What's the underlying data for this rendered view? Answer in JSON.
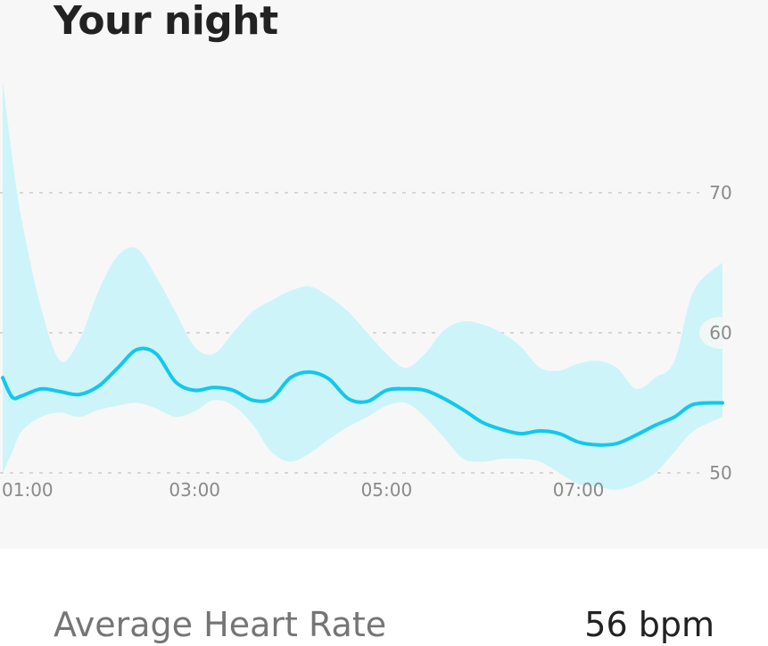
{
  "header": {
    "title": "Your night"
  },
  "colors": {
    "line": "#12c8ea",
    "band": "#cdf4f9",
    "grid": "#cccccc",
    "panel": "#f7f7f7"
  },
  "stat": {
    "label": "Average Heart Rate",
    "value": "56 bpm"
  },
  "chart_data": {
    "type": "line",
    "x_unit": "time",
    "x_ticks": [
      "01:00",
      "03:00",
      "05:00",
      "07:00"
    ],
    "x_tick_values": [
      1,
      3,
      5,
      7
    ],
    "x_range": [
      1.0,
      8.5
    ],
    "ylim": [
      46,
      84
    ],
    "y_ticks": [
      50,
      60,
      70
    ],
    "grid": "horizontal dashed at y ticks",
    "series": [
      {
        "values": [
          [
            1.0,
            56.8
          ],
          [
            1.1,
            55.4
          ],
          [
            1.2,
            55.5
          ],
          [
            1.4,
            56.0
          ],
          [
            1.6,
            55.8
          ],
          [
            1.8,
            55.6
          ],
          [
            2.0,
            56.2
          ],
          [
            2.2,
            57.5
          ],
          [
            2.4,
            58.8
          ],
          [
            2.6,
            58.5
          ],
          [
            2.8,
            56.5
          ],
          [
            3.0,
            55.9
          ],
          [
            3.2,
            56.1
          ],
          [
            3.4,
            55.9
          ],
          [
            3.6,
            55.2
          ],
          [
            3.8,
            55.3
          ],
          [
            4.0,
            56.8
          ],
          [
            4.2,
            57.2
          ],
          [
            4.4,
            56.7
          ],
          [
            4.6,
            55.3
          ],
          [
            4.8,
            55.1
          ],
          [
            5.0,
            55.9
          ],
          [
            5.2,
            56.0
          ],
          [
            5.4,
            55.9
          ],
          [
            5.6,
            55.3
          ],
          [
            5.8,
            54.5
          ],
          [
            6.0,
            53.6
          ],
          [
            6.2,
            53.1
          ],
          [
            6.4,
            52.8
          ],
          [
            6.6,
            53.0
          ],
          [
            6.8,
            52.8
          ],
          [
            7.0,
            52.2
          ],
          [
            7.2,
            52.0
          ],
          [
            7.4,
            52.1
          ],
          [
            7.6,
            52.7
          ],
          [
            7.8,
            53.4
          ],
          [
            8.0,
            54.0
          ],
          [
            8.2,
            54.9
          ],
          [
            8.5,
            55.0
          ]
        ]
      }
    ],
    "range_band": {
      "upper": [
        [
          1.0,
          78.0
        ],
        [
          1.1,
          72.5
        ],
        [
          1.2,
          68.0
        ],
        [
          1.4,
          61.8
        ],
        [
          1.6,
          58.0
        ],
        [
          1.8,
          59.5
        ],
        [
          2.0,
          63.0
        ],
        [
          2.2,
          65.5
        ],
        [
          2.4,
          66.0
        ],
        [
          2.6,
          64.0
        ],
        [
          2.8,
          61.5
        ],
        [
          3.0,
          59.0
        ],
        [
          3.2,
          58.5
        ],
        [
          3.4,
          60.0
        ],
        [
          3.6,
          61.5
        ],
        [
          3.8,
          62.3
        ],
        [
          4.0,
          63.0
        ],
        [
          4.2,
          63.3
        ],
        [
          4.4,
          62.6
        ],
        [
          4.6,
          61.5
        ],
        [
          4.8,
          60.0
        ],
        [
          5.0,
          58.5
        ],
        [
          5.2,
          57.5
        ],
        [
          5.4,
          58.5
        ],
        [
          5.6,
          60.2
        ],
        [
          5.8,
          60.8
        ],
        [
          6.0,
          60.6
        ],
        [
          6.2,
          60.0
        ],
        [
          6.4,
          59.0
        ],
        [
          6.6,
          57.5
        ],
        [
          6.8,
          57.3
        ],
        [
          7.0,
          57.8
        ],
        [
          7.2,
          58.0
        ],
        [
          7.4,
          57.5
        ],
        [
          7.6,
          56.0
        ],
        [
          7.8,
          56.8
        ],
        [
          8.0,
          58.0
        ],
        [
          8.2,
          63.0
        ],
        [
          8.5,
          65.0
        ]
      ],
      "lower": [
        [
          1.0,
          50.0
        ],
        [
          1.1,
          51.5
        ],
        [
          1.2,
          53.0
        ],
        [
          1.4,
          54.0
        ],
        [
          1.6,
          54.3
        ],
        [
          1.8,
          54.0
        ],
        [
          2.0,
          54.5
        ],
        [
          2.2,
          54.8
        ],
        [
          2.4,
          55.0
        ],
        [
          2.6,
          54.6
        ],
        [
          2.8,
          54.0
        ],
        [
          3.0,
          54.4
        ],
        [
          3.2,
          55.2
        ],
        [
          3.4,
          54.8
        ],
        [
          3.6,
          53.5
        ],
        [
          3.8,
          51.5
        ],
        [
          4.0,
          50.8
        ],
        [
          4.2,
          51.4
        ],
        [
          4.4,
          52.4
        ],
        [
          4.6,
          53.3
        ],
        [
          4.8,
          54.0
        ],
        [
          5.0,
          54.8
        ],
        [
          5.2,
          55.0
        ],
        [
          5.4,
          54.0
        ],
        [
          5.6,
          52.5
        ],
        [
          5.8,
          51.0
        ],
        [
          6.0,
          50.8
        ],
        [
          6.2,
          51.0
        ],
        [
          6.4,
          51.0
        ],
        [
          6.6,
          50.8
        ],
        [
          6.8,
          50.0
        ],
        [
          7.0,
          49.2
        ],
        [
          7.2,
          49.0
        ],
        [
          7.4,
          48.8
        ],
        [
          7.6,
          49.2
        ],
        [
          7.8,
          50.0
        ],
        [
          8.0,
          51.5
        ],
        [
          8.2,
          53.0
        ],
        [
          8.5,
          54.0
        ]
      ]
    }
  }
}
